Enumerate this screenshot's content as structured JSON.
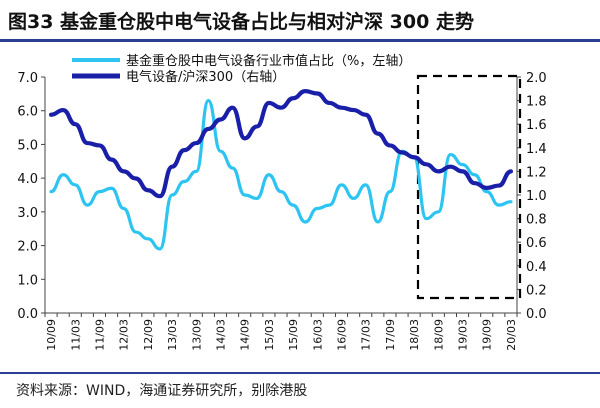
{
  "title": "图33 基金重仓股中电气设备占比与相对沪深 300 走势",
  "source": "资料来源：WIND，海通证券研究所，别除港股",
  "colors": {
    "light": "#2ec4f2",
    "dark": "#1a1fa8",
    "box": "#000000",
    "rule": "#2c3e91"
  },
  "chart_data": {
    "type": "line",
    "x": [
      "10/09",
      "10/12",
      "11/03",
      "11/06",
      "11/09",
      "11/12",
      "12/03",
      "12/06",
      "12/09",
      "12/12",
      "13/03",
      "13/06",
      "13/09",
      "13/12",
      "14/03",
      "14/06",
      "14/09",
      "14/12",
      "15/03",
      "15/06",
      "15/09",
      "15/12",
      "16/03",
      "16/06",
      "16/09",
      "16/12",
      "17/03",
      "17/06",
      "17/09",
      "17/12",
      "18/03",
      "18/06",
      "18/09",
      "18/12",
      "19/03",
      "19/06",
      "19/09",
      "19/12",
      "20/03"
    ],
    "xticks": [
      "10/09",
      "11/03",
      "11/09",
      "12/03",
      "12/09",
      "13/03",
      "13/09",
      "14/03",
      "14/09",
      "15/03",
      "15/09",
      "16/03",
      "16/09",
      "17/03",
      "17/09",
      "18/03",
      "18/09",
      "19/03",
      "19/09",
      "20/03"
    ],
    "series": [
      {
        "name": "基金重仓股中电气设备行业市值占比（%，左轴）",
        "axis": "left",
        "values": [
          3.6,
          4.1,
          3.8,
          3.2,
          3.6,
          3.7,
          3.1,
          2.4,
          2.2,
          1.9,
          3.5,
          3.9,
          4.2,
          6.3,
          4.8,
          4.3,
          3.5,
          3.4,
          4.1,
          3.6,
          3.2,
          2.7,
          3.1,
          3.2,
          3.8,
          3.4,
          3.8,
          2.7,
          3.6,
          4.8,
          4.6,
          2.8,
          3.0,
          4.7,
          4.4,
          4.1,
          3.6,
          3.2,
          3.3
        ]
      },
      {
        "name": "电气设备/沪深300（右轴）",
        "axis": "right",
        "values": [
          1.68,
          1.72,
          1.6,
          1.44,
          1.42,
          1.3,
          1.2,
          1.14,
          1.04,
          0.99,
          1.24,
          1.38,
          1.44,
          1.56,
          1.64,
          1.74,
          1.48,
          1.58,
          1.78,
          1.74,
          1.82,
          1.88,
          1.86,
          1.78,
          1.74,
          1.72,
          1.68,
          1.52,
          1.42,
          1.36,
          1.32,
          1.26,
          1.2,
          1.24,
          1.2,
          1.1,
          1.06,
          1.08,
          1.2
        ]
      }
    ],
    "yleft": {
      "range": [
        0,
        7
      ],
      "ticks": [
        "0.0",
        "1.0",
        "2.0",
        "3.0",
        "4.0",
        "5.0",
        "6.0",
        "7.0"
      ]
    },
    "yright": {
      "range": [
        0,
        2
      ],
      "ticks": [
        "0.0",
        "0.2",
        "0.4",
        "0.6",
        "0.8",
        "1.0",
        "1.2",
        "1.4",
        "1.6",
        "1.8",
        "2.0"
      ]
    },
    "legend": "top-left",
    "annotation": "dashed-box-18/03-20/03",
    "grid": false
  }
}
